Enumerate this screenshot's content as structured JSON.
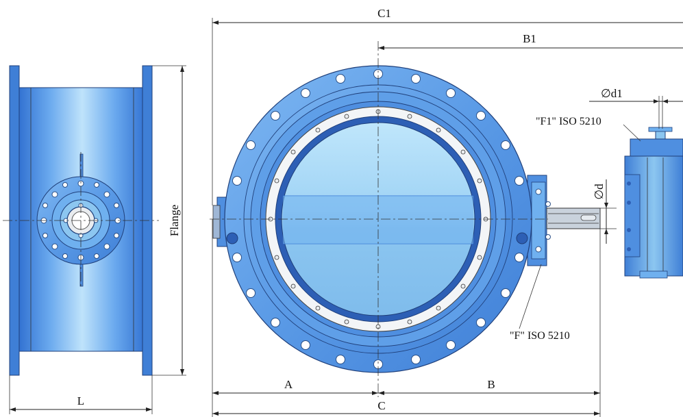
{
  "labels": {
    "c1": "C1",
    "b1": "B1",
    "d1": "∅d1",
    "f1_standard": "\"F1\" ISO 5210",
    "d": "∅d",
    "f_standard": "\"F\" ISO 5210",
    "flange": "Flange",
    "l": "L",
    "a": "A",
    "b": "B",
    "c": "C"
  },
  "colors": {
    "body_blue": "#5b9bea",
    "light_blue": "#a9d8f7",
    "dark_blue": "#2d5fb5",
    "outline": "#1f3f7a"
  }
}
